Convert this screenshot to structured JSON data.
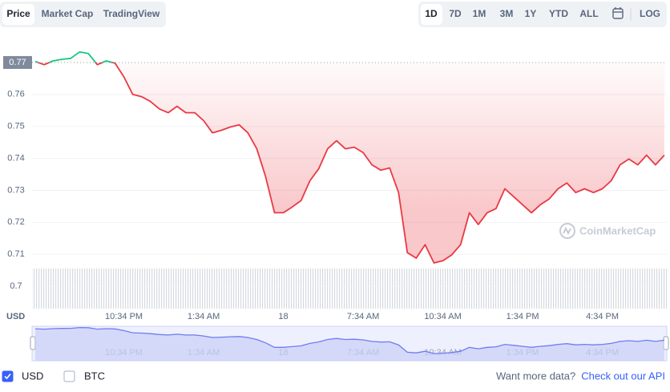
{
  "tabs": [
    "Price",
    "Market Cap",
    "TradingView"
  ],
  "ranges": [
    "1D",
    "7D",
    "1M",
    "3M",
    "1Y",
    "YTD",
    "ALL"
  ],
  "log_button": "LOG",
  "watermark": "CoinMarketCap",
  "currency_toggles": [
    {
      "label": "USD",
      "checked": true
    },
    {
      "label": "BTC",
      "checked": false
    }
  ],
  "footer": {
    "text": "Want more data?",
    "link": "Check out our API"
  },
  "chart_data": {
    "type": "line",
    "y_label": "USD",
    "categories": [
      null,
      null,
      null,
      null,
      null,
      null,
      null,
      null,
      null,
      null,
      "10:34 PM",
      null,
      null,
      null,
      null,
      null,
      null,
      null,
      null,
      "1:34 AM",
      null,
      null,
      null,
      null,
      null,
      null,
      null,
      null,
      "18",
      null,
      null,
      null,
      null,
      null,
      null,
      null,
      null,
      "7:34 AM",
      null,
      null,
      null,
      null,
      null,
      null,
      null,
      null,
      "10:34 AM",
      null,
      null,
      null,
      null,
      null,
      null,
      null,
      null,
      "1:34 PM",
      null,
      null,
      null,
      null,
      null,
      null,
      null,
      null,
      "4:34 PM",
      null,
      null,
      null,
      null,
      null,
      null,
      null
    ],
    "values": [
      0.7703,
      0.7693,
      0.7705,
      0.771,
      0.7713,
      0.7733,
      0.7728,
      0.7693,
      0.7705,
      0.7698,
      0.7655,
      0.76,
      0.7593,
      0.7578,
      0.7555,
      0.7543,
      0.7563,
      0.7543,
      0.7543,
      0.7518,
      0.748,
      0.7488,
      0.7498,
      0.7505,
      0.748,
      0.743,
      0.7343,
      0.723,
      0.723,
      0.7248,
      0.7268,
      0.733,
      0.7368,
      0.743,
      0.7455,
      0.743,
      0.7435,
      0.7418,
      0.738,
      0.7363,
      0.737,
      0.7293,
      0.7105,
      0.7088,
      0.713,
      0.7073,
      0.708,
      0.7098,
      0.713,
      0.723,
      0.7193,
      0.723,
      0.7243,
      0.7305,
      0.728,
      0.7255,
      0.723,
      0.7255,
      0.7273,
      0.7305,
      0.7323,
      0.7293,
      0.7305,
      0.7293,
      0.7305,
      0.733,
      0.738,
      0.7398,
      0.738,
      0.741,
      0.738,
      0.741
    ],
    "baseline": 0.77,
    "up_color": "#16c784",
    "down_color": "#ea3943",
    "ylim": [
      0.693,
      0.7745
    ],
    "yticks": [
      0.7,
      0.71,
      0.72,
      0.73,
      0.74,
      0.75,
      0.76
    ],
    "grid": true
  }
}
